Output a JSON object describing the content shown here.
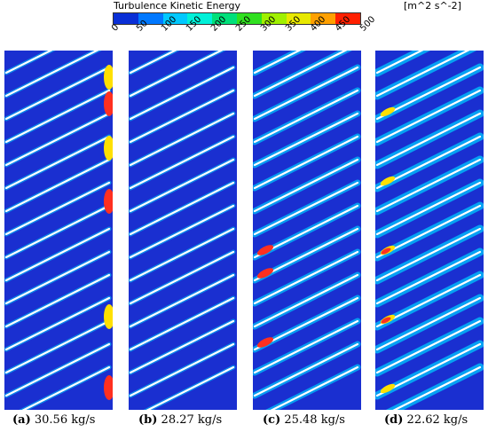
{
  "legend": {
    "title": "Turbulence Kinetic Energy",
    "units": "[m^2 s^-2]",
    "ticks": [
      "0",
      "50",
      "100",
      "150",
      "200",
      "250",
      "300",
      "350",
      "400",
      "450",
      "500"
    ],
    "colors": [
      "#0a2fd6",
      "#0078ff",
      "#00c8ff",
      "#00f0d8",
      "#00e07a",
      "#30e020",
      "#a0f000",
      "#e8e800",
      "#ffa000",
      "#ff2000"
    ]
  },
  "panels": [
    {
      "label": "(a)",
      "value": "30.56 kg/s",
      "intensity": "trailing-edge-high"
    },
    {
      "label": "(b)",
      "value": "28.27 kg/s",
      "intensity": "low"
    },
    {
      "label": "(c)",
      "value": "25.48 kg/s",
      "intensity": "medium"
    },
    {
      "label": "(d)",
      "value": "22.62 kg/s",
      "intensity": "high"
    }
  ],
  "palette": {
    "background": "#1a2fd0",
    "blade": "#ffffff",
    "halo": "#00c8ff",
    "hot": "#ff3020",
    "warm": "#ffe000"
  }
}
